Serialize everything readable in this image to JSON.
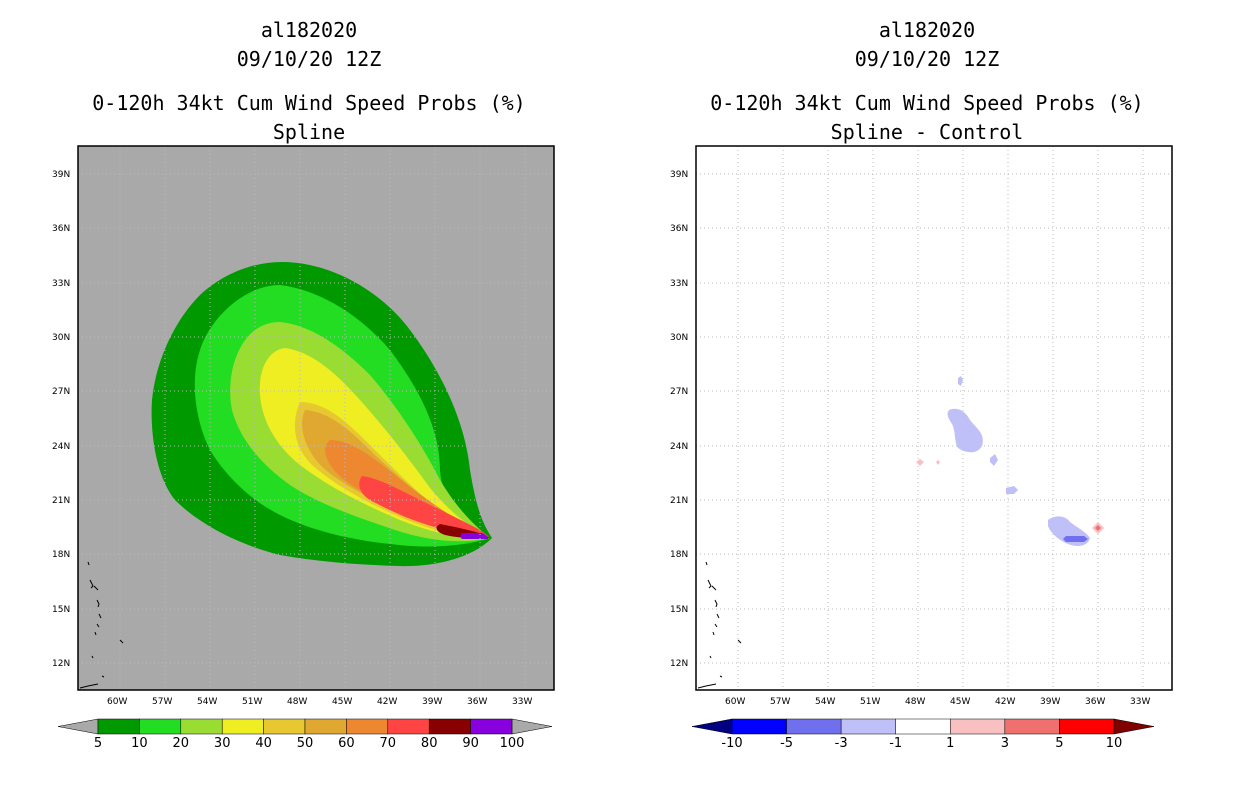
{
  "left": {
    "title": [
      "al182020",
      "09/10/20 12Z",
      "0-120h 34kt Cum Wind Speed Probs (%)",
      "Spline"
    ],
    "background": "#a9a9a9",
    "colorbar": {
      "labels": [
        "5",
        "10",
        "20",
        "30",
        "40",
        "50",
        "60",
        "70",
        "80",
        "90",
        "100"
      ],
      "colors": [
        "#009900",
        "#22dd22",
        "#99dd33",
        "#eeee22",
        "#e8c830",
        "#e0a830",
        "#ee8830",
        "#ff4444",
        "#880000",
        "#8800dd"
      ]
    }
  },
  "right": {
    "title": [
      "al182020",
      "09/10/20 12Z",
      "0-120h 34kt Cum Wind Speed Probs (%)",
      "Spline - Control"
    ],
    "background": "#ffffff",
    "colorbar": {
      "labels": [
        "-10",
        "-5",
        "-3",
        "-1",
        "1",
        "3",
        "5",
        "10"
      ],
      "colors": [
        "#0000ff",
        "#7070ee",
        "#c0c0f8",
        "#ffffff",
        "#f8c0c0",
        "#f07070",
        "#ff0000"
      ],
      "end_colors": [
        "#000080",
        "#800000"
      ]
    }
  },
  "axes": {
    "lat_labels": [
      "39N",
      "36N",
      "33N",
      "30N",
      "27N",
      "24N",
      "21N",
      "18N",
      "15N",
      "12N"
    ],
    "lon_labels": [
      "60W",
      "57W",
      "54W",
      "51W",
      "48W",
      "45W",
      "42W",
      "39W",
      "36W",
      "33W"
    ]
  }
}
